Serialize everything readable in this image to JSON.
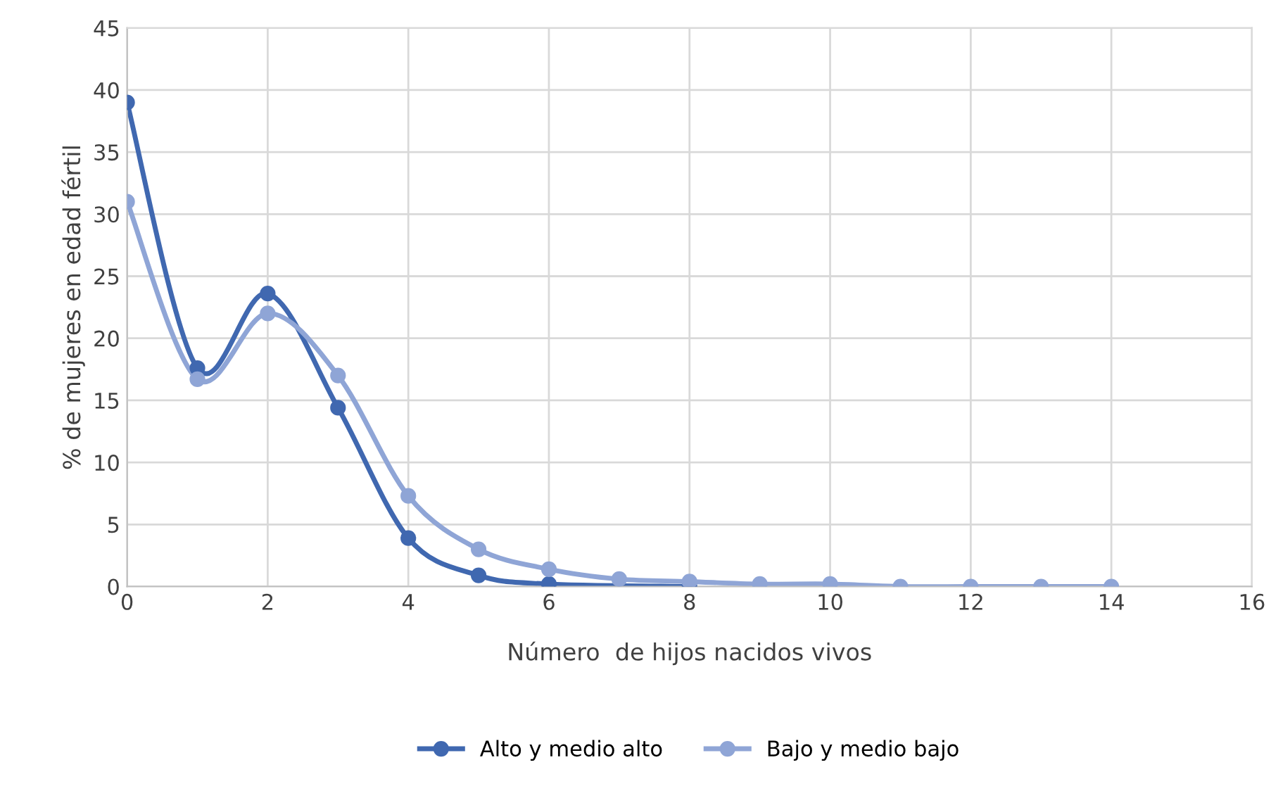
{
  "chart_data": {
    "type": "line",
    "xlabel": "Número  de hijos nacidos vivos",
    "ylabel": "% de mujeres en edad fértil",
    "series": [
      {
        "name": "Alto y medio alto",
        "color": "#4068b0",
        "x": [
          0,
          1,
          2,
          3,
          4,
          5,
          6,
          7,
          8
        ],
        "values": [
          39,
          17.6,
          23.6,
          14.4,
          3.9,
          0.9,
          0.2,
          null,
          0.0
        ]
      },
      {
        "name": "Bajo y medio bajo",
        "color": "#8fa5d6",
        "x": [
          0,
          1,
          2,
          3,
          4,
          5,
          6,
          7,
          8,
          9,
          10,
          11,
          12,
          13,
          14
        ],
        "values": [
          31,
          16.7,
          22,
          17,
          7.3,
          3,
          1.4,
          0.6,
          0.4,
          0.2,
          0.2,
          0,
          0,
          0,
          0
        ]
      }
    ],
    "xlim": [
      0,
      16
    ],
    "xticks": [
      0,
      2,
      4,
      6,
      8,
      10,
      12,
      14,
      16
    ],
    "ylim": [
      0,
      45
    ],
    "yticks": [
      0,
      5,
      10,
      15,
      20,
      25,
      30,
      35,
      40,
      45
    ],
    "grid": true,
    "legend": "bottom",
    "marker": "circle",
    "line_style": "solid"
  }
}
